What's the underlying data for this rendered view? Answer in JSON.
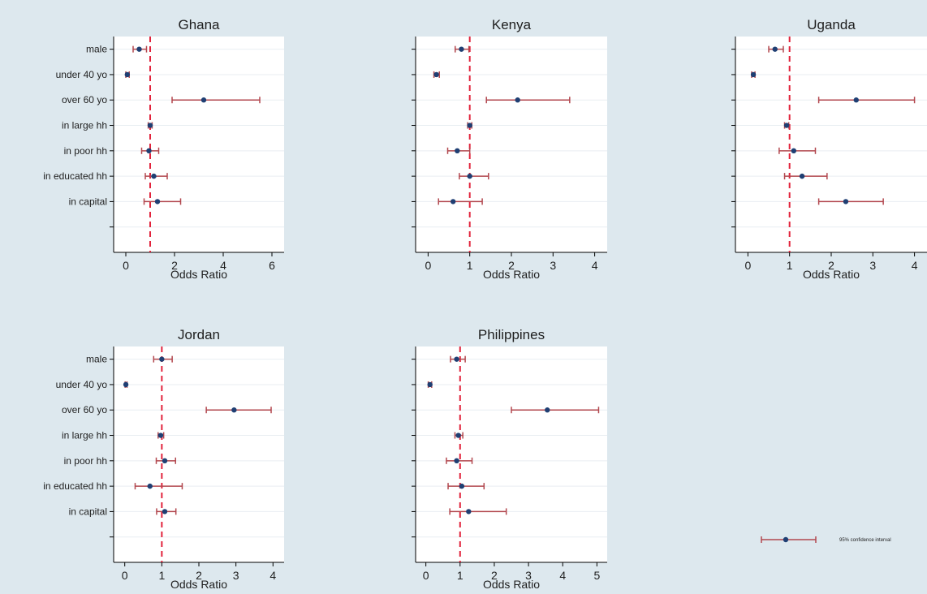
{
  "chart_data": {
    "type": "scatter",
    "description_style": "forest plot of odds ratios with 95% confidence intervals, multiple panels",
    "categories": [
      "male",
      "under 40 yo",
      "over 60 yo",
      "in large hh",
      "in poor hh",
      "in educated hh",
      "in capital"
    ],
    "xlabel": "Odds Ratio",
    "reference_line": 1,
    "colors": {
      "background": "#dde8ee",
      "plot_bg": "#ffffff",
      "gridline": "#e9eef2",
      "point": "#1f3f73",
      "ci": "#b2474e",
      "ref_line": "#e2233c",
      "axis": "#000000"
    },
    "legend": {
      "label": "95% confidence interval",
      "placement": "bottom-right"
    },
    "panels": [
      {
        "title": "Ghana",
        "xlim": [
          -0.5,
          6.5
        ],
        "xticks": [
          0,
          2,
          4,
          6
        ],
        "points": [
          {
            "label": "male",
            "or": 0.55,
            "lo": 0.3,
            "hi": 0.85
          },
          {
            "label": "under 40 yo",
            "or": 0.06,
            "lo": 0.0,
            "hi": 0.14
          },
          {
            "label": "over 60 yo",
            "or": 3.2,
            "lo": 1.9,
            "hi": 5.5
          },
          {
            "label": "in large hh",
            "or": 1.0,
            "lo": 0.92,
            "hi": 1.08
          },
          {
            "label": "in poor hh",
            "or": 0.95,
            "lo": 0.65,
            "hi": 1.35
          },
          {
            "label": "in educated hh",
            "or": 1.15,
            "lo": 0.8,
            "hi": 1.7
          },
          {
            "label": "in capital",
            "or": 1.3,
            "lo": 0.75,
            "hi": 2.25
          }
        ]
      },
      {
        "title": "Kenya",
        "xlim": [
          -0.3,
          4.3
        ],
        "xticks": [
          0,
          1,
          2,
          3,
          4
        ],
        "points": [
          {
            "label": "male",
            "or": 0.8,
            "lo": 0.65,
            "hi": 0.98
          },
          {
            "label": "under 40 yo",
            "or": 0.2,
            "lo": 0.14,
            "hi": 0.27
          },
          {
            "label": "over 60 yo",
            "or": 2.15,
            "lo": 1.4,
            "hi": 3.4
          },
          {
            "label": "in large hh",
            "or": 1.0,
            "lo": 0.95,
            "hi": 1.05
          },
          {
            "label": "in poor hh",
            "or": 0.7,
            "lo": 0.47,
            "hi": 1.0
          },
          {
            "label": "in educated hh",
            "or": 1.0,
            "lo": 0.75,
            "hi": 1.45
          },
          {
            "label": "in capital",
            "or": 0.6,
            "lo": 0.25,
            "hi": 1.3
          }
        ]
      },
      {
        "title": "Uganda",
        "xlim": [
          -0.3,
          4.3
        ],
        "xticks": [
          0,
          1,
          2,
          3,
          4
        ],
        "points": [
          {
            "label": "male",
            "or": 0.65,
            "lo": 0.5,
            "hi": 0.85
          },
          {
            "label": "under 40 yo",
            "or": 0.13,
            "lo": 0.09,
            "hi": 0.17
          },
          {
            "label": "over 60 yo",
            "or": 2.6,
            "lo": 1.7,
            "hi": 4.0
          },
          {
            "label": "in large hh",
            "or": 0.93,
            "lo": 0.88,
            "hi": 0.98
          },
          {
            "label": "in poor hh",
            "or": 1.1,
            "lo": 0.75,
            "hi": 1.62
          },
          {
            "label": "in educated hh",
            "or": 1.3,
            "lo": 0.88,
            "hi": 1.9
          },
          {
            "label": "in capital",
            "or": 2.35,
            "lo": 1.7,
            "hi": 3.25
          }
        ]
      },
      {
        "title": "Jordan",
        "xlim": [
          -0.3,
          4.3
        ],
        "xticks": [
          0,
          1,
          2,
          3,
          4
        ],
        "points": [
          {
            "label": "male",
            "or": 1.0,
            "lo": 0.78,
            "hi": 1.28
          },
          {
            "label": "under 40 yo",
            "or": 0.03,
            "lo": 0.01,
            "hi": 0.06
          },
          {
            "label": "over 60 yo",
            "or": 2.95,
            "lo": 2.2,
            "hi": 3.95
          },
          {
            "label": "in large hh",
            "or": 0.97,
            "lo": 0.9,
            "hi": 1.05
          },
          {
            "label": "in poor hh",
            "or": 1.08,
            "lo": 0.85,
            "hi": 1.37
          },
          {
            "label": "in educated hh",
            "or": 0.68,
            "lo": 0.28,
            "hi": 1.55
          },
          {
            "label": "in capital",
            "or": 1.08,
            "lo": 0.86,
            "hi": 1.38
          }
        ]
      },
      {
        "title": "Philippines",
        "xlim": [
          -0.3,
          5.3
        ],
        "xticks": [
          0,
          1,
          2,
          3,
          4,
          5
        ],
        "points": [
          {
            "label": "male",
            "or": 0.9,
            "lo": 0.72,
            "hi": 1.15
          },
          {
            "label": "under 40 yo",
            "or": 0.12,
            "lo": 0.07,
            "hi": 0.17
          },
          {
            "label": "over 60 yo",
            "or": 3.55,
            "lo": 2.5,
            "hi": 5.05
          },
          {
            "label": "in large hh",
            "or": 0.95,
            "lo": 0.85,
            "hi": 1.08
          },
          {
            "label": "in poor hh",
            "or": 0.9,
            "lo": 0.6,
            "hi": 1.35
          },
          {
            "label": "in educated hh",
            "or": 1.05,
            "lo": 0.65,
            "hi": 1.7
          },
          {
            "label": "in capital",
            "or": 1.25,
            "lo": 0.7,
            "hi": 2.35
          }
        ]
      }
    ]
  }
}
